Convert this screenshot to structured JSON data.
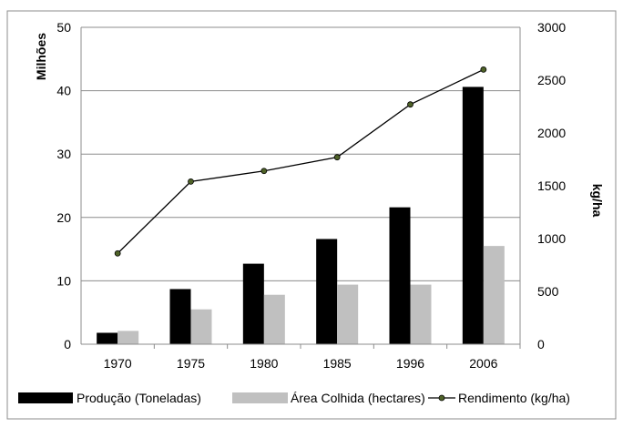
{
  "chart_data": {
    "type": "bar",
    "categories": [
      "1970",
      "1975",
      "1980",
      "1985",
      "1996",
      "2006"
    ],
    "series": [
      {
        "name": "Produção (Toneladas)",
        "type": "bar",
        "axis": "left",
        "color": "#000000",
        "values": [
          1.8,
          8.7,
          12.7,
          16.6,
          21.6,
          40.6
        ]
      },
      {
        "name": "Área Colhida (hectares)",
        "type": "bar",
        "axis": "left",
        "color": "#c0c0c0",
        "values": [
          2.1,
          5.5,
          7.8,
          9.4,
          9.4,
          15.5
        ]
      },
      {
        "name": "Rendimento (kg/ha)",
        "type": "line",
        "axis": "right",
        "color": "#000000",
        "marker_color": "#4f6228",
        "values": [
          860,
          1540,
          1640,
          1770,
          2270,
          2600
        ]
      }
    ],
    "ylabel": "Milhões",
    "y2label": "kg/ha",
    "ylim": [
      0,
      50
    ],
    "y2lim": [
      0,
      3000
    ],
    "yticks": [
      "0",
      "10",
      "20",
      "30",
      "40",
      "50"
    ],
    "y2ticks": [
      "0",
      "500",
      "1000",
      "1500",
      "2000",
      "2500",
      "3000"
    ],
    "grid": true,
    "legend_position": "bottom"
  }
}
